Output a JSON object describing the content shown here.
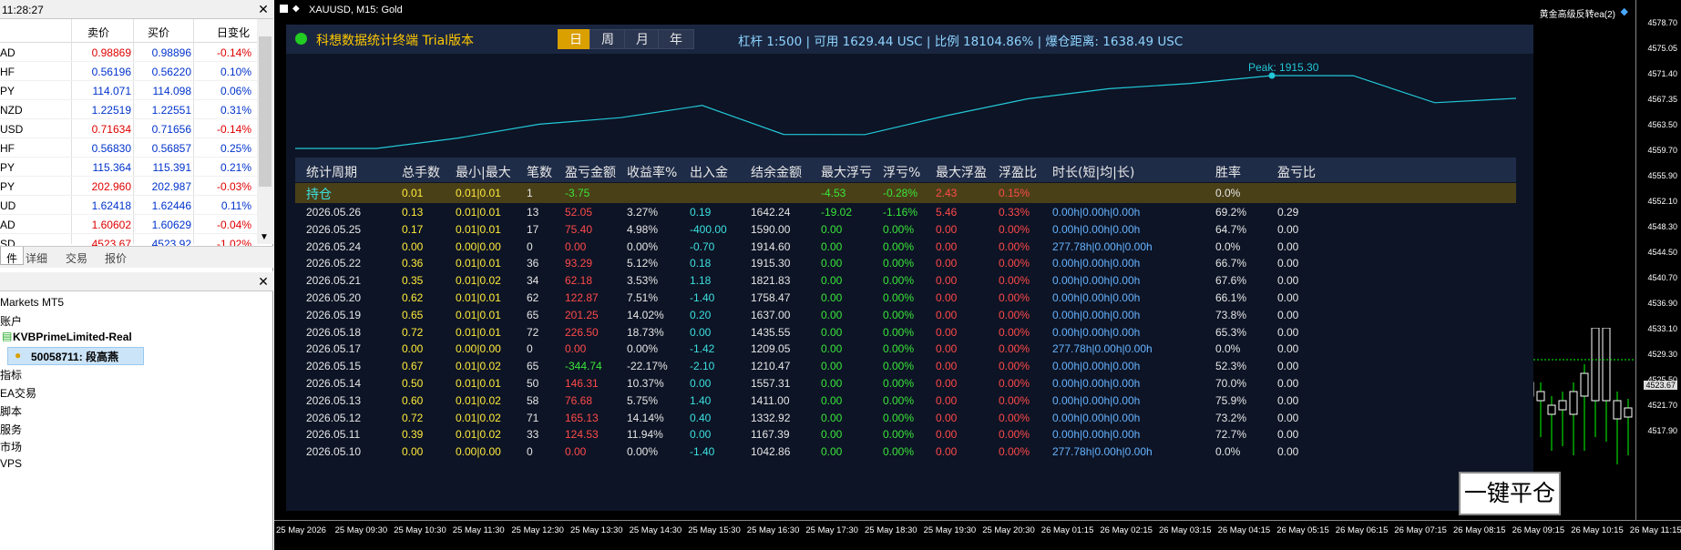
{
  "market_watch": {
    "title": "11:28:27",
    "col_bid": "卖价",
    "col_ask": "买价",
    "col_change": "日变化",
    "rows": [
      {
        "symbol": "AD",
        "bid": "0.98869",
        "ask": "0.98896",
        "change": "-0.14%"
      },
      {
        "symbol": "HF",
        "bid": "0.56196",
        "ask": "0.56220",
        "change": "0.10%"
      },
      {
        "symbol": "PY",
        "bid": "114.071",
        "ask": "114.098",
        "change": "0.06%"
      },
      {
        "symbol": "NZD",
        "bid": "1.22519",
        "ask": "1.22551",
        "change": "0.31%"
      },
      {
        "symbol": "USD",
        "bid": "0.71634",
        "ask": "0.71656",
        "change": "-0.14%"
      },
      {
        "symbol": "HF",
        "bid": "0.56830",
        "ask": "0.56857",
        "change": "0.25%"
      },
      {
        "symbol": "PY",
        "bid": "115.364",
        "ask": "115.391",
        "change": "0.21%"
      },
      {
        "symbol": "PY",
        "bid": "202.960",
        "ask": "202.987",
        "change": "-0.03%"
      },
      {
        "symbol": "UD",
        "bid": "1.62418",
        "ask": "1.62446",
        "change": "0.11%"
      },
      {
        "symbol": "AD",
        "bid": "1.60602",
        "ask": "1.60629",
        "change": "-0.04%"
      },
      {
        "symbol": "SD",
        "bid": "4523.67",
        "ask": "4523.92",
        "change": "-1.02%"
      }
    ],
    "tabs": [
      "件",
      "详细",
      "交易",
      "报价"
    ]
  },
  "navigator": {
    "root": "Markets MT5",
    "accounts_label": "账户",
    "server": "KVBPrimeLimited-Real",
    "account": "50058711: 段高燕",
    "items": [
      "指标",
      "EA交易",
      "脚本",
      "服务",
      "市场",
      "VPS"
    ]
  },
  "chart": {
    "title": "XAUUSD, M15:  Gold",
    "ea_label": "黄金高级反转ea(2)",
    "y_ticks": [
      "4578.70",
      "4575.05",
      "4571.40",
      "4567.35",
      "4563.50",
      "4559.70",
      "4555.90",
      "4552.10",
      "4548.30",
      "4544.50",
      "4540.70",
      "4536.90",
      "4533.10",
      "4529.30",
      "4525.50",
      "4521.70",
      "4517.90"
    ],
    "current_price": "4523.67",
    "x_ticks": [
      "25 May 2026",
      "25 May 09:30",
      "25 May 10:30",
      "25 May 11:30",
      "25 May 12:30",
      "25 May 13:30",
      "25 May 14:30",
      "25 May 15:30",
      "25 May 16:30",
      "25 May 17:30",
      "25 May 18:30",
      "25 May 19:30",
      "25 May 20:30",
      "26 May 01:15",
      "26 May 02:15",
      "26 May 03:15",
      "26 May 04:15",
      "26 May 05:15",
      "26 May 06:15",
      "26 May 07:15",
      "26 May 08:15",
      "26 May 09:15",
      "26 May 10:15",
      "26 May 11:15"
    ],
    "close_all_label": "一键平仓",
    "bull_color": "#00ff00",
    "bear_color": "#ffffff"
  },
  "panel": {
    "title": "科想数据统计终端 Trial版本",
    "status_color": "#22cc22",
    "periods": [
      "日",
      "周",
      "月",
      "年"
    ],
    "active_period": "日",
    "account_info": "杠杆 1:500 | 可用 1629.44 USC | 比例 18104.86% | 爆仓距离: 1638.49 USC",
    "peak_label": "Peak: 1915.30",
    "curve_color": "#22c8d8",
    "equity_curve": [
      1042.86,
      1042.86,
      1167.39,
      1332.92,
      1411.0,
      1557.31,
      1210.47,
      1209.05,
      1435.55,
      1637.0,
      1758.47,
      1821.83,
      1915.3,
      1914.6,
      1590.0,
      1642.24
    ],
    "headers": [
      "统计周期",
      "总手数",
      "最小|最大",
      "笔数",
      "盈亏金额",
      "收益率%",
      "出入金",
      "结余金额",
      "最大浮亏",
      "浮亏%",
      "最大浮盈",
      "浮盈比",
      "时长(短|均|长)",
      "胜率",
      "盈亏比"
    ],
    "holding": {
      "period": "持仓",
      "lots": "0.01",
      "minmax": "0.01|0.01",
      "count": "1",
      "pnl": "-3.75",
      "ret": "",
      "flow": "",
      "balance": "",
      "maxloss": "-4.53",
      "losspct": "-0.28%",
      "maxgain": "2.43",
      "gainpct": "0.15%",
      "duration": "",
      "winrate": "0.0%",
      "pf": ""
    },
    "rows": [
      {
        "period": "2026.05.26",
        "lots": "0.13",
        "minmax": "0.01|0.01",
        "count": "13",
        "pnl": "52.05",
        "ret": "3.27%",
        "flow": "0.19",
        "balance": "1642.24",
        "maxloss": "-19.02",
        "losspct": "-1.16%",
        "maxgain": "5.46",
        "gainpct": "0.33%",
        "duration": "0.00h|0.00h|0.00h",
        "winrate": "69.2%",
        "pf": "0.29"
      },
      {
        "period": "2026.05.25",
        "lots": "0.17",
        "minmax": "0.01|0.01",
        "count": "17",
        "pnl": "75.40",
        "ret": "4.98%",
        "flow": "-400.00",
        "balance": "1590.00",
        "maxloss": "0.00",
        "losspct": "0.00%",
        "maxgain": "0.00",
        "gainpct": "0.00%",
        "duration": "0.00h|0.00h|0.00h",
        "winrate": "64.7%",
        "pf": "0.00"
      },
      {
        "period": "2026.05.24",
        "lots": "0.00",
        "minmax": "0.00|0.00",
        "count": "0",
        "pnl": "0.00",
        "ret": "0.00%",
        "flow": "-0.70",
        "balance": "1914.60",
        "maxloss": "0.00",
        "losspct": "0.00%",
        "maxgain": "0.00",
        "gainpct": "0.00%",
        "duration": "277.78h|0.00h|0.00h",
        "winrate": "0.0%",
        "pf": "0.00"
      },
      {
        "period": "2026.05.22",
        "lots": "0.36",
        "minmax": "0.01|0.01",
        "count": "36",
        "pnl": "93.29",
        "ret": "5.12%",
        "flow": "0.18",
        "balance": "1915.30",
        "maxloss": "0.00",
        "losspct": "0.00%",
        "maxgain": "0.00",
        "gainpct": "0.00%",
        "duration": "0.00h|0.00h|0.00h",
        "winrate": "66.7%",
        "pf": "0.00"
      },
      {
        "period": "2026.05.21",
        "lots": "0.35",
        "minmax": "0.01|0.02",
        "count": "34",
        "pnl": "62.18",
        "ret": "3.53%",
        "flow": "1.18",
        "balance": "1821.83",
        "maxloss": "0.00",
        "losspct": "0.00%",
        "maxgain": "0.00",
        "gainpct": "0.00%",
        "duration": "0.00h|0.00h|0.00h",
        "winrate": "67.6%",
        "pf": "0.00"
      },
      {
        "period": "2026.05.20",
        "lots": "0.62",
        "minmax": "0.01|0.01",
        "count": "62",
        "pnl": "122.87",
        "ret": "7.51%",
        "flow": "-1.40",
        "balance": "1758.47",
        "maxloss": "0.00",
        "losspct": "0.00%",
        "maxgain": "0.00",
        "gainpct": "0.00%",
        "duration": "0.00h|0.00h|0.00h",
        "winrate": "66.1%",
        "pf": "0.00"
      },
      {
        "period": "2026.05.19",
        "lots": "0.65",
        "minmax": "0.01|0.01",
        "count": "65",
        "pnl": "201.25",
        "ret": "14.02%",
        "flow": "0.20",
        "balance": "1637.00",
        "maxloss": "0.00",
        "losspct": "0.00%",
        "maxgain": "0.00",
        "gainpct": "0.00%",
        "duration": "0.00h|0.00h|0.00h",
        "winrate": "73.8%",
        "pf": "0.00"
      },
      {
        "period": "2026.05.18",
        "lots": "0.72",
        "minmax": "0.01|0.01",
        "count": "72",
        "pnl": "226.50",
        "ret": "18.73%",
        "flow": "0.00",
        "balance": "1435.55",
        "maxloss": "0.00",
        "losspct": "0.00%",
        "maxgain": "0.00",
        "gainpct": "0.00%",
        "duration": "0.00h|0.00h|0.00h",
        "winrate": "65.3%",
        "pf": "0.00"
      },
      {
        "period": "2026.05.17",
        "lots": "0.00",
        "minmax": "0.00|0.00",
        "count": "0",
        "pnl": "0.00",
        "ret": "0.00%",
        "flow": "-1.42",
        "balance": "1209.05",
        "maxloss": "0.00",
        "losspct": "0.00%",
        "maxgain": "0.00",
        "gainpct": "0.00%",
        "duration": "277.78h|0.00h|0.00h",
        "winrate": "0.0%",
        "pf": "0.00"
      },
      {
        "period": "2026.05.15",
        "lots": "0.67",
        "minmax": "0.01|0.02",
        "count": "65",
        "pnl": "-344.74",
        "ret": "-22.17%",
        "flow": "-2.10",
        "balance": "1210.47",
        "maxloss": "0.00",
        "losspct": "0.00%",
        "maxgain": "0.00",
        "gainpct": "0.00%",
        "duration": "0.00h|0.00h|0.00h",
        "winrate": "52.3%",
        "pf": "0.00"
      },
      {
        "period": "2026.05.14",
        "lots": "0.50",
        "minmax": "0.01|0.01",
        "count": "50",
        "pnl": "146.31",
        "ret": "10.37%",
        "flow": "0.00",
        "balance": "1557.31",
        "maxloss": "0.00",
        "losspct": "0.00%",
        "maxgain": "0.00",
        "gainpct": "0.00%",
        "duration": "0.00h|0.00h|0.00h",
        "winrate": "70.0%",
        "pf": "0.00"
      },
      {
        "period": "2026.05.13",
        "lots": "0.60",
        "minmax": "0.01|0.02",
        "count": "58",
        "pnl": "76.68",
        "ret": "5.75%",
        "flow": "1.40",
        "balance": "1411.00",
        "maxloss": "0.00",
        "losspct": "0.00%",
        "maxgain": "0.00",
        "gainpct": "0.00%",
        "duration": "0.00h|0.00h|0.00h",
        "winrate": "75.9%",
        "pf": "0.00"
      },
      {
        "period": "2026.05.12",
        "lots": "0.72",
        "minmax": "0.01|0.02",
        "count": "71",
        "pnl": "165.13",
        "ret": "14.14%",
        "flow": "0.40",
        "balance": "1332.92",
        "maxloss": "0.00",
        "losspct": "0.00%",
        "maxgain": "0.00",
        "gainpct": "0.00%",
        "duration": "0.00h|0.00h|0.00h",
        "winrate": "73.2%",
        "pf": "0.00"
      },
      {
        "period": "2026.05.11",
        "lots": "0.39",
        "minmax": "0.01|0.02",
        "count": "33",
        "pnl": "124.53",
        "ret": "11.94%",
        "flow": "0.00",
        "balance": "1167.39",
        "maxloss": "0.00",
        "losspct": "0.00%",
        "maxgain": "0.00",
        "gainpct": "0.00%",
        "duration": "0.00h|0.00h|0.00h",
        "winrate": "72.7%",
        "pf": "0.00"
      },
      {
        "period": "2026.05.10",
        "lots": "0.00",
        "minmax": "0.00|0.00",
        "count": "0",
        "pnl": "0.00",
        "ret": "0.00%",
        "flow": "-1.40",
        "balance": "1042.86",
        "maxloss": "0.00",
        "losspct": "0.00%",
        "maxgain": "0.00",
        "gainpct": "0.00%",
        "duration": "277.78h|0.00h|0.00h",
        "winrate": "0.0%",
        "pf": "0.00"
      }
    ]
  }
}
